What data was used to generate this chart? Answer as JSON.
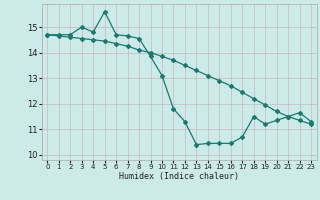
{
  "title": "",
  "xlabel": "Humidex (Indice chaleur)",
  "bg_color": "#cceae7",
  "line_color": "#1a7a6e",
  "grid_color": "#c8b8c0",
  "x_values": [
    0,
    1,
    2,
    3,
    4,
    5,
    6,
    7,
    8,
    9,
    10,
    11,
    12,
    13,
    14,
    15,
    16,
    17,
    18,
    19,
    20,
    21,
    22,
    23
  ],
  "line1_y": [
    14.7,
    14.7,
    14.7,
    15.0,
    14.8,
    15.6,
    14.7,
    14.65,
    14.55,
    13.85,
    13.1,
    11.8,
    11.3,
    10.4,
    10.45,
    10.45,
    10.45,
    10.7,
    11.5,
    11.2,
    11.35,
    11.5,
    11.65,
    11.3
  ],
  "line2_y": [
    14.7,
    14.65,
    14.6,
    14.55,
    14.5,
    14.45,
    14.35,
    14.25,
    14.1,
    14.0,
    13.85,
    13.7,
    13.5,
    13.3,
    13.1,
    12.9,
    12.7,
    12.45,
    12.2,
    11.95,
    11.7,
    11.5,
    11.35,
    11.2
  ],
  "ylim": [
    9.8,
    15.9
  ],
  "xlim": [
    -0.5,
    23.5
  ],
  "yticks": [
    10,
    11,
    12,
    13,
    14,
    15
  ],
  "xticks": [
    0,
    1,
    2,
    3,
    4,
    5,
    6,
    7,
    8,
    9,
    10,
    11,
    12,
    13,
    14,
    15,
    16,
    17,
    18,
    19,
    20,
    21,
    22,
    23
  ]
}
